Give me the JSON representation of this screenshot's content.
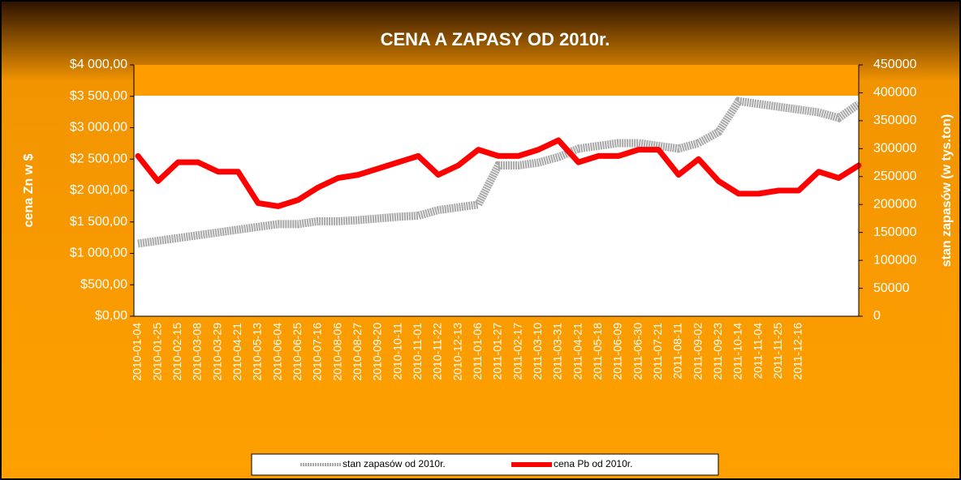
{
  "chart_data": {
    "type": "line",
    "title": "CENA A ZAPASY  OD 2010r.",
    "y_label": "cena Zn w $",
    "y2_label": "stan zapasów (w tys.ton)",
    "categories": [
      "2010-01-04",
      "2010-01-25",
      "2010-02-15",
      "2010-03-08",
      "2010-03-29",
      "2010-04-21",
      "2010-05-13",
      "2010-06-04",
      "2010-06-25",
      "2010-07-16",
      "2010-08-06",
      "2010-08-27",
      "2010-09-20",
      "2010-10-11",
      "2010-11-01",
      "2010-11-22",
      "2010-12-13",
      "2011-01-06",
      "2011-01-27",
      "2011-02-17",
      "2011-03-10",
      "2011-03-31",
      "2011-04-21",
      "2011-05-18",
      "2011-06-09",
      "2011-06-30",
      "2011-07-21",
      "2011-08-11",
      "2011-09-02",
      "2011-09-23",
      "2011-10-14",
      "2011-11-04",
      "2011-11-25",
      "2011-12-16",
      null,
      null,
      null
    ],
    "series": [
      {
        "name": "stan zapasów od 2010r.",
        "color": "#a8a8a8",
        "axis": "y2",
        "values": [
          130000,
          135000,
          140000,
          145000,
          150000,
          155000,
          160000,
          165000,
          165000,
          170000,
          170000,
          172000,
          175000,
          178000,
          180000,
          190000,
          195000,
          200000,
          270000,
          270000,
          275000,
          285000,
          300000,
          305000,
          310000,
          310000,
          305000,
          300000,
          310000,
          330000,
          385000,
          380000,
          375000,
          370000,
          365000,
          355000,
          380000
        ]
      },
      {
        "name": "cena Pb od 2010r.",
        "color": "#ff0000",
        "values": [
          2550,
          2150,
          2450,
          2450,
          2300,
          2300,
          1800,
          1750,
          1850,
          2050,
          2200,
          2250,
          2350,
          2450,
          2550,
          2250,
          2400,
          2650,
          2550,
          2550,
          2650,
          2800,
          2450,
          2550,
          2550,
          2650,
          2650,
          2250,
          2500,
          2150,
          1950,
          1950,
          2000,
          2000,
          2300,
          2200,
          2400
        ]
      }
    ],
    "ylim": [
      0,
      4000
    ],
    "yticks": [
      {
        "value": 0,
        "label": "$0,00"
      },
      {
        "value": 500,
        "label": "$500,00"
      },
      {
        "value": 1000,
        "label": "$1 000,00"
      },
      {
        "value": 1500,
        "label": "$1 500,00"
      },
      {
        "value": 2000,
        "label": "$2 000,00"
      },
      {
        "value": 2500,
        "label": "$2 500,00"
      },
      {
        "value": 3000,
        "label": "$3 000,00"
      },
      {
        "value": 3500,
        "label": "$3 500,00"
      },
      {
        "value": 4000,
        "label": "$4 000,00"
      }
    ],
    "y2lim": [
      0,
      450000
    ],
    "y2ticks": [
      0,
      50000,
      100000,
      150000,
      200000,
      250000,
      300000,
      350000,
      400000,
      450000
    ],
    "legend": "bottom"
  }
}
